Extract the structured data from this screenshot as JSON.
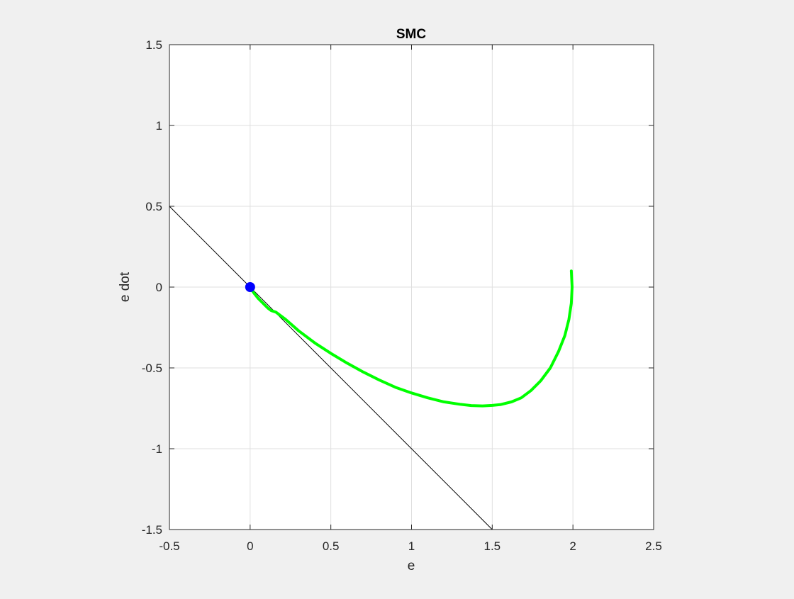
{
  "chart_data": {
    "type": "line",
    "title": "SMC",
    "xlabel": "e",
    "ylabel": "e dot",
    "xlim": [
      -0.5,
      2.5
    ],
    "ylim": [
      -1.5,
      1.5
    ],
    "x_ticks": [
      -0.5,
      0,
      0.5,
      1,
      1.5,
      2,
      2.5
    ],
    "y_ticks": [
      -1.5,
      -1,
      -0.5,
      0,
      0.5,
      1,
      1.5
    ],
    "x_tick_labels": [
      "-0.5",
      "0",
      "0.5",
      "1",
      "1.5",
      "2",
      "2.5"
    ],
    "y_tick_labels": [
      "-1.5",
      "-1",
      "-0.5",
      "0",
      "0.5",
      "1",
      "1.5"
    ],
    "grid": true,
    "legend": "none",
    "series": [
      {
        "kind": "line",
        "color": "#000000",
        "x": [
          -0.5,
          1.5
        ],
        "y": [
          0.5,
          -1.5
        ]
      },
      {
        "kind": "line",
        "color": "#00ff00",
        "x": [
          1.99,
          1.995,
          1.99,
          1.975,
          1.95,
          1.91,
          1.86,
          1.8,
          1.74,
          1.68,
          1.62,
          1.55,
          1.5,
          1.44,
          1.37,
          1.3,
          1.2,
          1.1,
          1.0,
          0.9,
          0.8,
          0.7,
          0.6,
          0.5,
          0.4,
          0.3,
          0.22,
          0.16,
          0.13,
          0.11,
          0.09,
          0.07,
          0.05,
          0.03,
          0.015,
          0.005
        ],
        "y": [
          0.1,
          0.0,
          -0.1,
          -0.2,
          -0.3,
          -0.4,
          -0.5,
          -0.58,
          -0.64,
          -0.685,
          -0.71,
          -0.727,
          -0.732,
          -0.735,
          -0.733,
          -0.725,
          -0.71,
          -0.685,
          -0.655,
          -0.62,
          -0.575,
          -0.525,
          -0.47,
          -0.41,
          -0.345,
          -0.27,
          -0.2,
          -0.155,
          -0.145,
          -0.13,
          -0.11,
          -0.09,
          -0.07,
          -0.045,
          -0.025,
          -0.005
        ]
      },
      {
        "kind": "scatter",
        "color": "#0000ff",
        "x": [
          0
        ],
        "y": [
          0
        ]
      }
    ]
  }
}
